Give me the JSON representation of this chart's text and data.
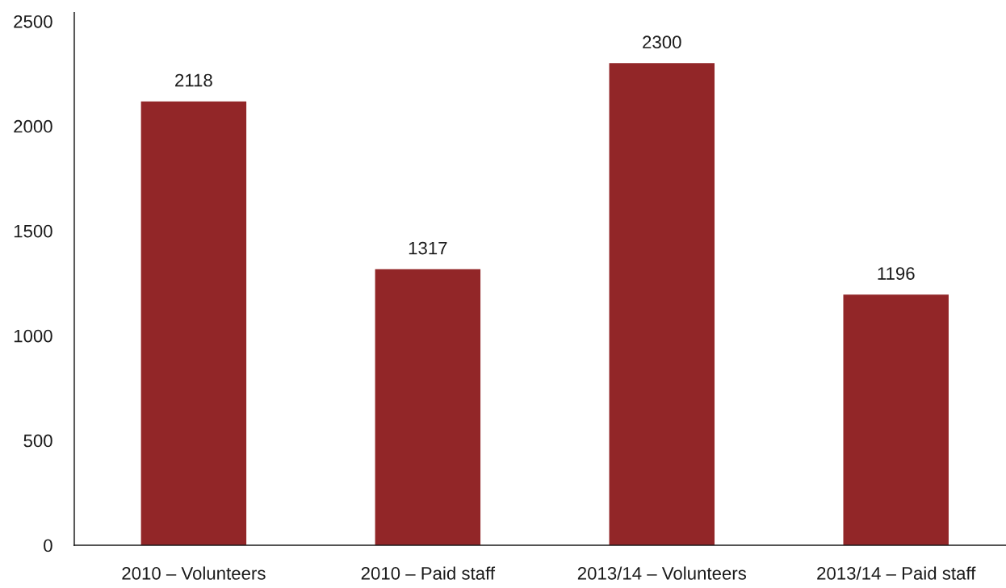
{
  "chart_data": {
    "type": "bar",
    "categories": [
      "2010 – Volunteers",
      "2010 – Paid staff",
      "2013/14 – Volunteers",
      "2013/14 – Paid staff"
    ],
    "values": [
      2118,
      1317,
      2300,
      1196
    ],
    "color": "#922628",
    "ylim": [
      0,
      2540
    ],
    "yticks": [
      0,
      500,
      1000,
      1500,
      2000,
      2500
    ],
    "data_labels": true
  }
}
